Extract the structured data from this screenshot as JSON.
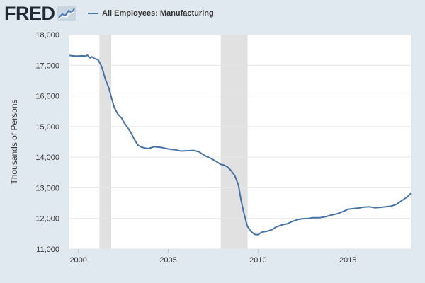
{
  "logo": {
    "text": "FRED"
  },
  "legend": {
    "label": "All Employees: Manufacturing",
    "color": "#4572a7"
  },
  "chart_data": {
    "type": "line",
    "title": "",
    "xlabel": "",
    "ylabel": "Thousands of Persons",
    "xlim": [
      1999.5,
      2018.5
    ],
    "ylim": [
      11000,
      18000
    ],
    "yticks": [
      11000,
      12000,
      13000,
      14000,
      15000,
      16000,
      17000,
      18000
    ],
    "ytick_labels": [
      "11,000",
      "12,000",
      "13,000",
      "14,000",
      "15,000",
      "16,000",
      "17,000",
      "18,000"
    ],
    "xticks": [
      2000,
      2005,
      2010,
      2015
    ],
    "xtick_labels": [
      "2000",
      "2005",
      "2010",
      "2015"
    ],
    "grid": "horizontal",
    "legend_position": "top",
    "line_color": "#4572a7",
    "recession_color": "#e1e1e1",
    "recessions": [
      [
        2001.17,
        2001.83
      ],
      [
        2007.92,
        2009.42
      ]
    ],
    "series": [
      {
        "name": "All Employees: Manufacturing",
        "x": [
          1999.5,
          1999.8,
          2000.0,
          2000.2,
          2000.4,
          2000.5,
          2000.65,
          2000.75,
          2000.9,
          2001.1,
          2001.3,
          2001.5,
          2001.7,
          2001.85,
          2002.0,
          2002.2,
          2002.4,
          2002.55,
          2002.7,
          2002.9,
          2003.1,
          2003.3,
          2003.5,
          2003.7,
          2003.9,
          2004.2,
          2004.6,
          2005.0,
          2005.4,
          2005.7,
          2006.0,
          2006.4,
          2006.7,
          2006.9,
          2007.1,
          2007.3,
          2007.5,
          2007.7,
          2007.9,
          2008.1,
          2008.3,
          2008.5,
          2008.7,
          2008.9,
          2009.05,
          2009.2,
          2009.4,
          2009.6,
          2009.8,
          2010.0,
          2010.2,
          2010.5,
          2010.8,
          2011.0,
          2011.2,
          2011.4,
          2011.6,
          2011.9,
          2012.2,
          2012.5,
          2012.8,
          2013.0,
          2013.4,
          2013.8,
          2014.0,
          2014.4,
          2014.8,
          2015.0,
          2015.3,
          2015.6,
          2015.9,
          2016.2,
          2016.5,
          2016.8,
          2017.1,
          2017.4,
          2017.7,
          2018.0,
          2018.3,
          2018.5
        ],
        "values": [
          17320,
          17300,
          17300,
          17310,
          17300,
          17330,
          17240,
          17280,
          17220,
          17180,
          16950,
          16550,
          16250,
          15920,
          15620,
          15400,
          15280,
          15120,
          15000,
          14820,
          14600,
          14400,
          14330,
          14300,
          14280,
          14340,
          14320,
          14270,
          14240,
          14200,
          14210,
          14220,
          14180,
          14100,
          14030,
          13980,
          13920,
          13850,
          13770,
          13740,
          13680,
          13560,
          13400,
          13100,
          12600,
          12200,
          11750,
          11580,
          11480,
          11470,
          11550,
          11580,
          11640,
          11720,
          11760,
          11800,
          11820,
          11900,
          11960,
          11990,
          12000,
          12020,
          12020,
          12060,
          12100,
          12150,
          12240,
          12300,
          12320,
          12340,
          12370,
          12380,
          12350,
          12360,
          12380,
          12400,
          12460,
          12580,
          12700,
          12820
        ]
      }
    ]
  }
}
